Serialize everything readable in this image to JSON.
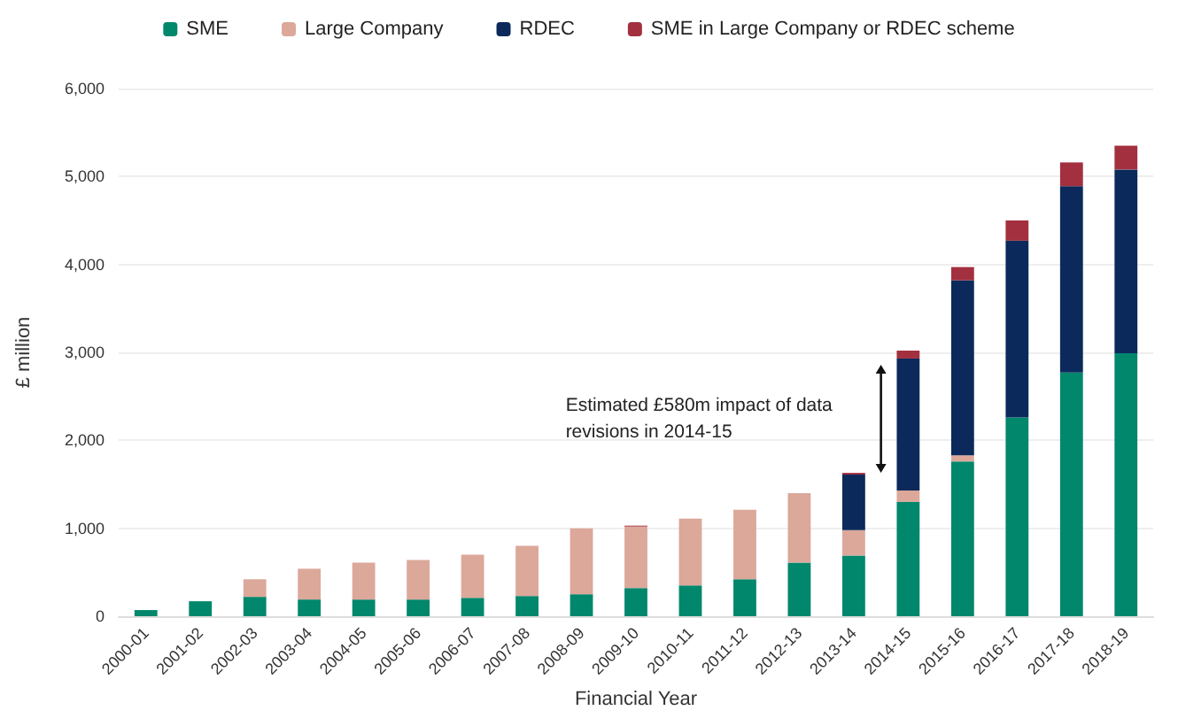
{
  "chart_data": {
    "type": "bar",
    "stacked": true,
    "categories": [
      "2000-01",
      "2001-02",
      "2002-03",
      "2003-04",
      "2004-05",
      "2005-06",
      "2006-07",
      "2007-08",
      "2008-09",
      "2009-10",
      "2010-11",
      "2011-12",
      "2012-13",
      "2013-14",
      "2014-15",
      "2015-16",
      "2016-17",
      "2017-18",
      "2018-19"
    ],
    "series": [
      {
        "name": "SME",
        "color": "#00876c",
        "values": [
          70,
          170,
          220,
          190,
          190,
          190,
          210,
          230,
          250,
          320,
          350,
          420,
          610,
          690,
          1300,
          1760,
          2260,
          2770,
          2990
        ]
      },
      {
        "name": "Large Company",
        "color": "#dba89a",
        "values": [
          null,
          null,
          200,
          350,
          420,
          450,
          490,
          570,
          750,
          700,
          760,
          790,
          790,
          290,
          130,
          70,
          null,
          null,
          null
        ]
      },
      {
        "name": "RDEC",
        "color": "#0b2a5b",
        "values": [
          null,
          null,
          null,
          null,
          null,
          null,
          null,
          null,
          null,
          null,
          null,
          null,
          null,
          630,
          1500,
          1990,
          2010,
          2120,
          2090
        ]
      },
      {
        "name": "SME in Large Company or RDEC scheme",
        "color": "#a3303f",
        "values": [
          null,
          null,
          null,
          null,
          null,
          null,
          null,
          null,
          null,
          10,
          null,
          null,
          null,
          20,
          90,
          150,
          230,
          270,
          270
        ]
      }
    ],
    "xlabel": "Financial Year",
    "ylabel": "£ million",
    "ylim": [
      0,
      6000
    ],
    "yticks": [
      0,
      {
        "value": 1000,
        "label": "1,000"
      },
      {
        "value": 2000,
        "label": "2,000"
      },
      {
        "value": 3000,
        "label": "3,000"
      },
      {
        "value": 4000,
        "label": "4,000"
      },
      {
        "value": 5000,
        "label": "5,000"
      },
      {
        "value": 6000,
        "label": "6,000"
      }
    ],
    "grid": "y",
    "legend": "top",
    "annotations": [
      "Estimated £580m impact of data revisions in 2014-15"
    ]
  }
}
